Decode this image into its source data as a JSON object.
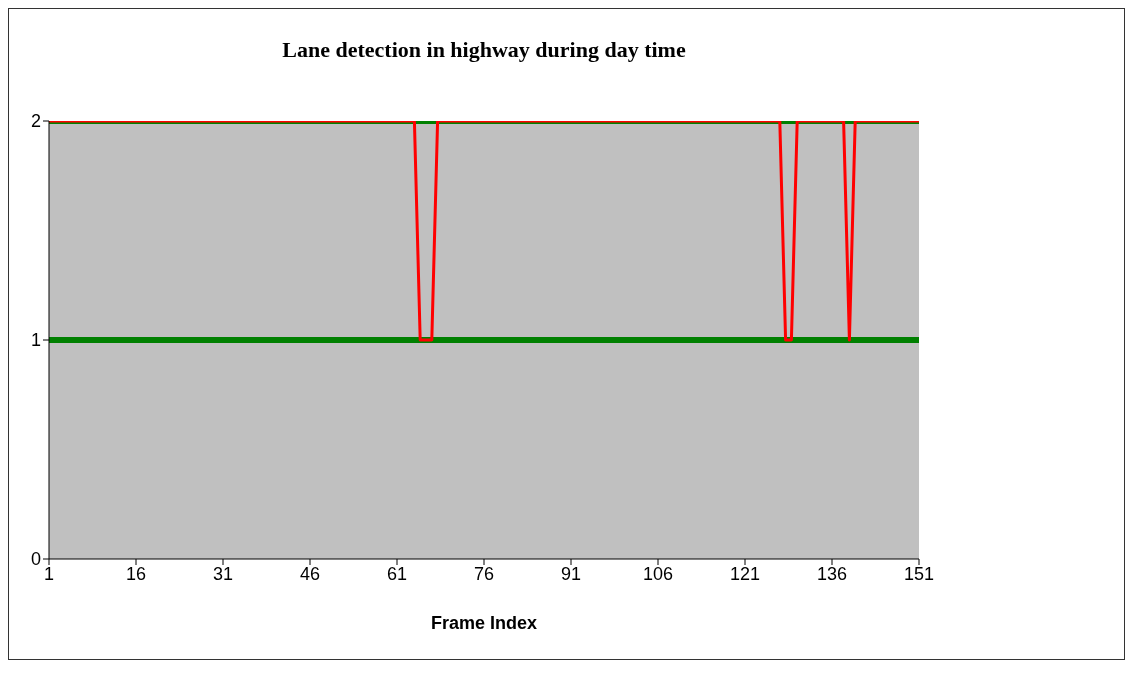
{
  "chart_data": {
    "type": "line",
    "title": "Lane detection in highway during day time",
    "xlabel": "Frame Index",
    "xlim": [
      1,
      151
    ],
    "xticks": [
      1,
      16,
      31,
      46,
      61,
      76,
      91,
      106,
      121,
      136,
      151
    ],
    "ylim": [
      0,
      2
    ],
    "yticks": [
      0,
      1,
      2
    ],
    "series": [
      {
        "color": "#008000",
        "x": [
          1,
          151
        ],
        "values": [
          2,
          2
        ]
      },
      {
        "color": "#008000",
        "x": [
          1,
          151
        ],
        "values": [
          1,
          1
        ]
      },
      {
        "color": "#ff0000",
        "x": [
          1,
          64,
          65,
          67,
          68,
          127,
          128,
          129,
          130,
          138,
          139,
          140,
          151
        ],
        "values": [
          2,
          2,
          1,
          1,
          2,
          2,
          1,
          1,
          2,
          2,
          1,
          2,
          2
        ]
      }
    ]
  }
}
